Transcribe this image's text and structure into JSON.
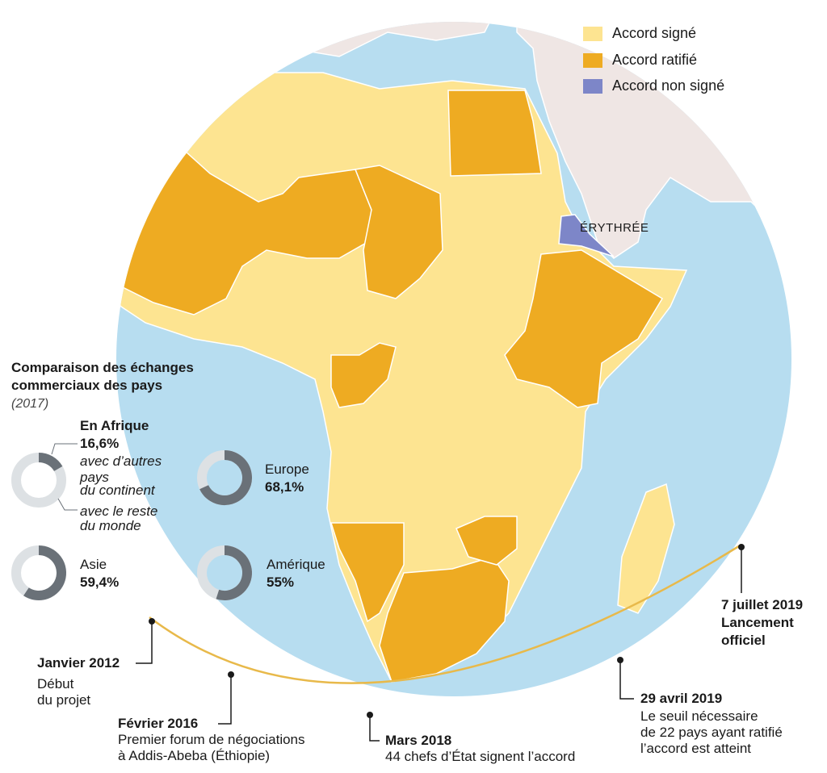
{
  "legend": {
    "items": [
      {
        "label": "Accord signé",
        "color": "#fde491"
      },
      {
        "label": "Accord ratifié",
        "color": "#eeab22"
      },
      {
        "label": "Accord non signé",
        "color": "#7d86c8"
      }
    ]
  },
  "map": {
    "ocean_color": "#b7ddf0",
    "land_other_color": "#efe6e4",
    "country_label": "ÉRYTHRÉE"
  },
  "comparison": {
    "title_line1": "Comparaison des échanges",
    "title_line2": "commerciaux des pays",
    "year": "(2017)",
    "africa": {
      "header": "En Afrique",
      "value": "16,6%",
      "value_fraction": 0.166,
      "desc_lines": [
        "avec d’autres",
        "pays",
        "du continent"
      ],
      "rest_lines": [
        "avec le reste",
        "du monde"
      ]
    },
    "donuts": [
      {
        "name": "Europe",
        "value": "68,1%",
        "fraction": 0.681
      },
      {
        "name": "Asie",
        "value": "59,4%",
        "fraction": 0.594
      },
      {
        "name": "Amérique",
        "value": "55%",
        "fraction": 0.55
      }
    ],
    "dark_color": "#6a7178",
    "light_color": "#dde1e4"
  },
  "timeline": [
    {
      "date": "Janvier 2012",
      "desc": [
        "Début",
        "du projet"
      ]
    },
    {
      "date": "Février 2016",
      "desc": [
        "Premier forum de négociations",
        "à Addis-Abeba (Éthiopie)"
      ]
    },
    {
      "date": "Mars 2018",
      "desc": [
        "44 chefs d’État signent l’accord"
      ]
    },
    {
      "date": "29 avril 2019",
      "desc": [
        "Le seuil nécessaire",
        "de 22 pays ayant ratifié",
        "l’accord est atteint"
      ]
    },
    {
      "date": "7 juillet 2019",
      "desc": [
        "Lancement",
        "officiel"
      ]
    }
  ]
}
